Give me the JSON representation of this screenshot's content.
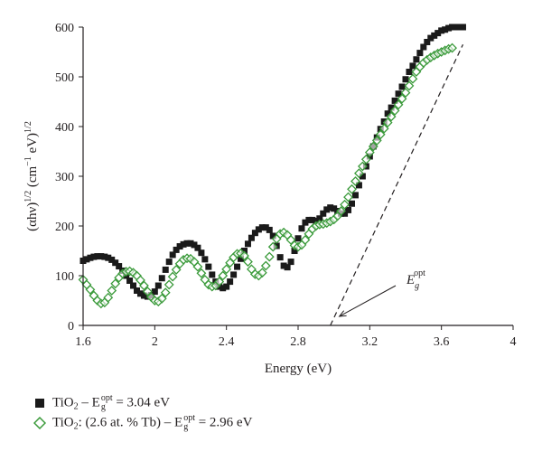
{
  "chart_data": {
    "type": "scatter",
    "xlabel": "Energy (eV)",
    "ylabel_parts": {
      "base": "(αhν)",
      "exp1": "1/2",
      "unit_open": " (cm",
      "exp2": "−1",
      "unit_mid": " eV)",
      "exp3": "1/2"
    },
    "xlim": [
      1.6,
      4.0
    ],
    "ylim": [
      0,
      600
    ],
    "xticks": [
      "1.6",
      "2",
      "2.4",
      "2.8",
      "3.2",
      "3.6",
      "4"
    ],
    "yticks": [
      "0",
      "100",
      "200",
      "300",
      "400",
      "500",
      "600"
    ],
    "grid": false,
    "annotation": {
      "label_main": "E",
      "label_sub": "g",
      "label_sup": "opt",
      "arrow_to": [
        3.0,
        0
      ]
    },
    "tangent_line": {
      "from": [
        2.98,
        0
      ],
      "to": [
        3.72,
        565
      ]
    },
    "series": [
      {
        "name": "TiO2 – Eg opt = 3.04 eV",
        "marker": "filled-square",
        "color": "#1a1a1a",
        "x": [
          1.6,
          1.62,
          1.64,
          1.66,
          1.68,
          1.7,
          1.72,
          1.74,
          1.76,
          1.78,
          1.8,
          1.82,
          1.84,
          1.86,
          1.88,
          1.9,
          1.92,
          1.94,
          1.96,
          1.98,
          2.0,
          2.02,
          2.04,
          2.06,
          2.08,
          2.1,
          2.12,
          2.14,
          2.16,
          2.18,
          2.2,
          2.22,
          2.24,
          2.26,
          2.28,
          2.3,
          2.32,
          2.34,
          2.36,
          2.38,
          2.4,
          2.42,
          2.44,
          2.46,
          2.48,
          2.5,
          2.52,
          2.54,
          2.56,
          2.58,
          2.6,
          2.62,
          2.64,
          2.66,
          2.68,
          2.7,
          2.72,
          2.74,
          2.76,
          2.78,
          2.8,
          2.82,
          2.84,
          2.86,
          2.88,
          2.9,
          2.92,
          2.94,
          2.96,
          2.98,
          3.0,
          3.02,
          3.04,
          3.06,
          3.08,
          3.1,
          3.12,
          3.14,
          3.16,
          3.18,
          3.2,
          3.22,
          3.24,
          3.26,
          3.28,
          3.3,
          3.32,
          3.34,
          3.36,
          3.38,
          3.4,
          3.42,
          3.44,
          3.46,
          3.48,
          3.5,
          3.52,
          3.54,
          3.56,
          3.58,
          3.6,
          3.62,
          3.64,
          3.66,
          3.68,
          3.7,
          3.72
        ],
        "y": [
          130,
          133,
          136,
          138,
          139,
          139,
          138,
          136,
          132,
          126,
          119,
          110,
          100,
          90,
          80,
          70,
          64,
          60,
          58,
          61,
          68,
          80,
          95,
          112,
          128,
          142,
          152,
          159,
          163,
          165,
          165,
          162,
          156,
          146,
          133,
          118,
          102,
          88,
          78,
          75,
          78,
          88,
          102,
          118,
          134,
          150,
          164,
          176,
          186,
          193,
          197,
          197,
          192,
          180,
          160,
          137,
          120,
          117,
          128,
          150,
          175,
          195,
          207,
          212,
          212,
          210,
          215,
          225,
          233,
          237,
          235,
          230,
          225,
          225,
          232,
          245,
          262,
          282,
          300,
          320,
          340,
          360,
          378,
          395,
          410,
          426,
          438,
          452,
          466,
          480,
          495,
          510,
          522,
          535,
          548,
          560,
          570,
          578,
          583,
          588,
          593,
          595,
          598,
          600,
          600,
          600,
          600
        ]
      },
      {
        "name": "TiO2: (2.6 at. % Tb) – Eg opt = 2.96 eV",
        "marker": "open-diamond",
        "color": "#3a9a3a",
        "x": [
          1.6,
          1.62,
          1.64,
          1.66,
          1.68,
          1.7,
          1.72,
          1.74,
          1.76,
          1.78,
          1.8,
          1.82,
          1.84,
          1.86,
          1.88,
          1.9,
          1.92,
          1.94,
          1.96,
          1.98,
          2.0,
          2.02,
          2.04,
          2.06,
          2.08,
          2.1,
          2.12,
          2.14,
          2.16,
          2.18,
          2.2,
          2.22,
          2.24,
          2.26,
          2.28,
          2.3,
          2.32,
          2.34,
          2.36,
          2.38,
          2.4,
          2.42,
          2.44,
          2.46,
          2.48,
          2.5,
          2.52,
          2.54,
          2.56,
          2.58,
          2.6,
          2.62,
          2.64,
          2.66,
          2.68,
          2.7,
          2.72,
          2.74,
          2.76,
          2.78,
          2.8,
          2.82,
          2.84,
          2.86,
          2.88,
          2.9,
          2.92,
          2.94,
          2.96,
          2.98,
          3.0,
          3.02,
          3.04,
          3.06,
          3.08,
          3.1,
          3.12,
          3.14,
          3.16,
          3.18,
          3.2,
          3.22,
          3.24,
          3.26,
          3.28,
          3.3,
          3.32,
          3.34,
          3.36,
          3.38,
          3.4,
          3.42,
          3.44,
          3.46,
          3.48,
          3.5,
          3.52,
          3.54,
          3.56,
          3.58,
          3.6,
          3.62,
          3.64,
          3.66
        ],
        "y": [
          92,
          82,
          72,
          60,
          50,
          44,
          46,
          56,
          70,
          84,
          96,
          104,
          108,
          109,
          106,
          100,
          91,
          80,
          68,
          57,
          50,
          48,
          54,
          66,
          82,
          98,
          112,
          124,
          132,
          135,
          134,
          128,
          118,
          105,
          92,
          82,
          78,
          80,
          88,
          100,
          113,
          126,
          137,
          144,
          145,
          140,
          128,
          113,
          103,
          100,
          106,
          120,
          138,
          158,
          174,
          184,
          187,
          182,
          172,
          161,
          158,
          162,
          172,
          184,
          194,
          200,
          203,
          204,
          206,
          209,
          213,
          220,
          230,
          243,
          258,
          274,
          290,
          306,
          320,
          334,
          348,
          360,
          372,
          384,
          396,
          408,
          420,
          432,
          444,
          456,
          468,
          482,
          496,
          510,
          520,
          528,
          534,
          539,
          543,
          547,
          550,
          553,
          556,
          558
        ]
      }
    ]
  },
  "legend": [
    {
      "formula": "TiO",
      "formula_sub": "2",
      "middle": " – E",
      "eg_sub": "g",
      "eg_sup": "opt",
      "value": " = 3.04 eV"
    },
    {
      "formula": "TiO",
      "formula_sub": "2",
      "middle": ": (2.6 at. % Tb) – E",
      "eg_sub": "g",
      "eg_sup": "opt",
      "value": " = 2.96 eV"
    }
  ]
}
